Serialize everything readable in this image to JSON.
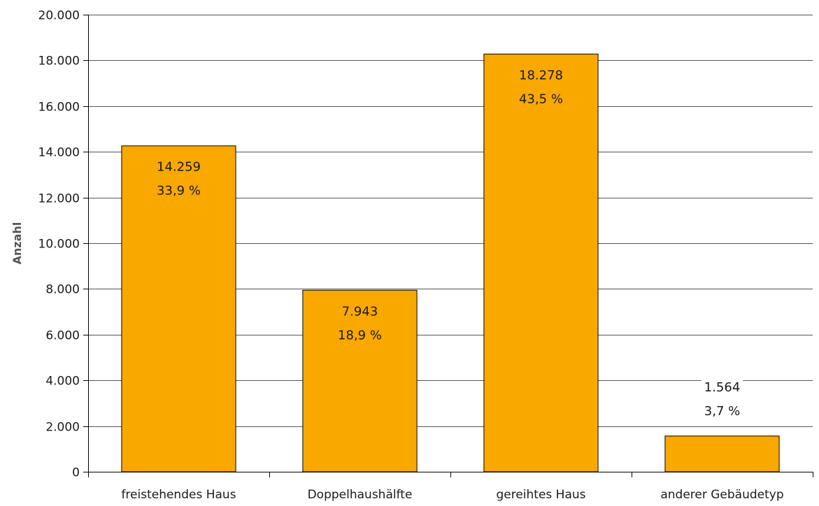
{
  "chart_data": {
    "type": "bar",
    "title": "",
    "xlabel": "",
    "ylabel": "Anzahl",
    "ylim": [
      0,
      20000
    ],
    "yticks": [
      0,
      2000,
      4000,
      6000,
      8000,
      10000,
      12000,
      14000,
      16000,
      18000,
      20000
    ],
    "ytick_labels": [
      "0",
      "2.000",
      "4.000",
      "6.000",
      "8.000",
      "10.000",
      "12.000",
      "14.000",
      "16.000",
      "18.000",
      "20.000"
    ],
    "grid": true,
    "legend": "none",
    "categories": [
      "freistehendes Haus",
      "Doppelhaushälfte",
      "gereihtes Haus",
      "anderer Gebäudetyp"
    ],
    "values": [
      14259,
      7943,
      18278,
      1564
    ],
    "value_labels": [
      "14.259",
      "7.943",
      "18.278",
      "1.564"
    ],
    "percent_labels": [
      "33,9 %",
      "18,9 %",
      "43,5 %",
      "3,7 %"
    ],
    "bar_color": "#F9A800",
    "bar_edge_color": "#000000"
  }
}
